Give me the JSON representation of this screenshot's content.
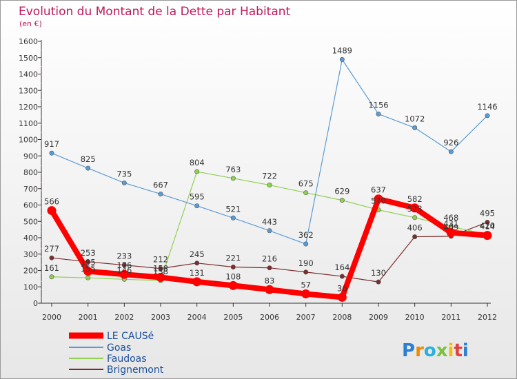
{
  "chart_data": {
    "type": "line",
    "title": "Evolution du Montant de la Dette par Habitant",
    "subtitle": "(en €)",
    "categories": [
      "2000",
      "2001",
      "2002",
      "2003",
      "2004",
      "2005",
      "2006",
      "2007",
      "2008",
      "2009",
      "2010",
      "2011",
      "2012"
    ],
    "yticks": [
      "0",
      "100",
      "200",
      "300",
      "400",
      "500",
      "600",
      "700",
      "800",
      "900",
      "1000",
      "1100",
      "1200",
      "1300",
      "1400",
      "1500",
      "1600"
    ],
    "ylim": [
      0,
      1600
    ],
    "grid": false,
    "legend_position": "bottom-left",
    "series": [
      {
        "name": "LE CAUSé",
        "color": "#ff0000",
        "values": [
          566,
          195,
          176,
          158,
          131,
          108,
          83,
          57,
          36,
          637,
          582,
          431,
          414
        ],
        "labels": [
          "566",
          "195",
          "176",
          "158",
          "131",
          "108",
          "83",
          "57",
          "36",
          "637",
          "582",
          "431",
          "414"
        ]
      },
      {
        "name": "Goas",
        "color": "#5b9bd5",
        "values": [
          917,
          825,
          735,
          667,
          595,
          521,
          443,
          362,
          1489,
          1156,
          1072,
          926,
          1146
        ],
        "labels": [
          "917",
          "825",
          "735",
          "667",
          "595",
          "521",
          "443",
          "362",
          "1489",
          "1156",
          "1072",
          "926",
          "1146"
        ]
      },
      {
        "name": "Faudoas",
        "color": "#8fd14f",
        "values": [
          161,
          155,
          146,
          138,
          804,
          763,
          722,
          675,
          629,
          570,
          523,
          468,
          420
        ],
        "labels": [
          "161",
          "155",
          "146",
          "138",
          "804",
          "763",
          "722",
          "675",
          "629",
          "570",
          "523",
          "468",
          "420"
        ]
      },
      {
        "name": "Brignemont",
        "color": "#7b2c2c",
        "values": [
          277,
          253,
          233,
          212,
          245,
          221,
          216,
          190,
          164,
          130,
          406,
          409,
          495
        ],
        "labels": [
          "277",
          "253",
          "233",
          "212",
          "245",
          "221",
          "216",
          "190",
          "164",
          "130",
          "406",
          "409",
          "495"
        ]
      }
    ]
  },
  "logo": {
    "letters": [
      "P",
      "r",
      "o",
      "x",
      "i",
      "t",
      "i"
    ]
  }
}
